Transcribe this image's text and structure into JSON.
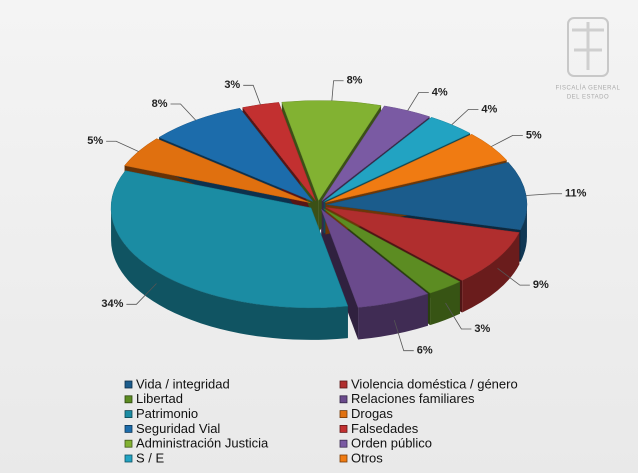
{
  "logo_text": [
    "FISCALÍA GENERAL",
    "DEL ESTADO"
  ],
  "chart_data": {
    "type": "pie",
    "legend": "bottom",
    "categories": [
      "Vida / integridad",
      "Violencia doméstica / género",
      "Libertad",
      "Relaciones familiares",
      "Patrimonio",
      "Drogas",
      "Seguridad Vial",
      "Falsedades",
      "Administración Justicia",
      "Orden público",
      "S / E",
      "Otros"
    ],
    "values": [
      11,
      9,
      3,
      6,
      34,
      5,
      8,
      3,
      8,
      4,
      4,
      5
    ],
    "value_labels": [
      "11%",
      "9%",
      "3%",
      "6%",
      "34%",
      "5%",
      "8%",
      "3%",
      "8%",
      "4%",
      "4%",
      "5%"
    ],
    "colors": [
      "#1b5c8c",
      "#b02e2e",
      "#5c8c22",
      "#6a4a8c",
      "#1b8ca3",
      "#e0700f",
      "#1c6cab",
      "#c23030",
      "#82b232",
      "#7a5aa3",
      "#22a3c2",
      "#f07b12"
    ]
  }
}
